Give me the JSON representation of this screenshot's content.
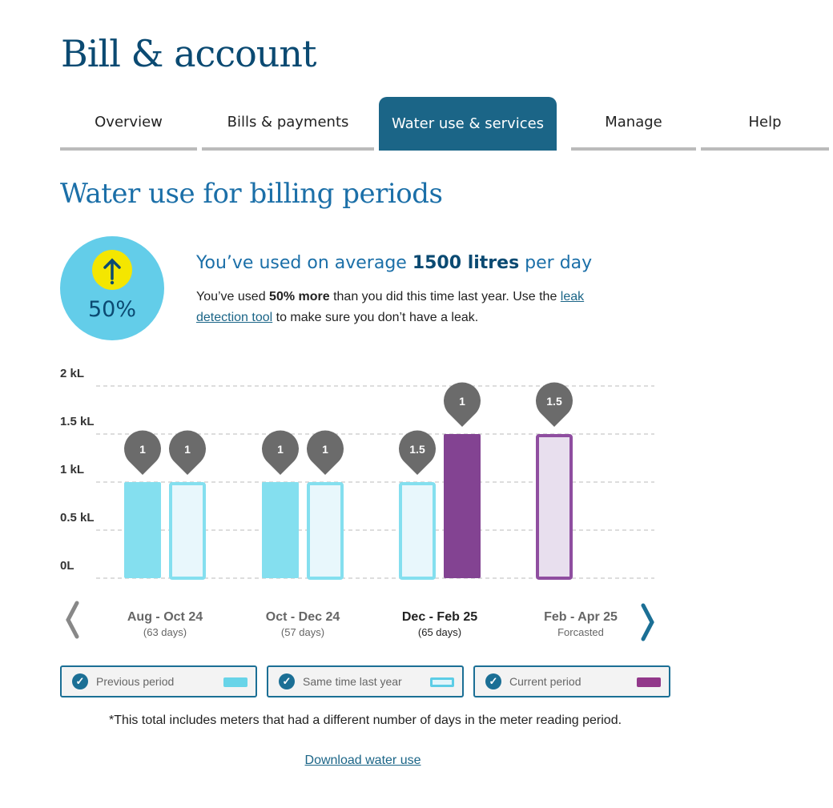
{
  "page_title": "Bill & account",
  "tabs": [
    {
      "label": "Overview",
      "active": false
    },
    {
      "label": "Bills & payments",
      "active": false
    },
    {
      "label": "Water use & services",
      "active": true
    },
    {
      "label": "Manage",
      "active": false
    },
    {
      "label": "Help",
      "active": false
    }
  ],
  "section_title": "Water use for billing periods",
  "summary": {
    "change_percent": "50%",
    "change_icon": "arrow-up-icon",
    "avg_prefix": "You’ve used on average ",
    "avg_value": "1500 litres",
    "avg_suffix": " per day",
    "desc_1": "You’ve used ",
    "desc_bold": "50% more",
    "desc_2": " than you did this time last year. Use the ",
    "link": "leak detection tool",
    "desc_3": " to make sure you don’t have a leak."
  },
  "colors": {
    "previous": "#84dfef",
    "same_time_last_year": "#e8f7fc",
    "same_time_last_year_border": "#84dfef",
    "current": "#834392",
    "forecast": "#e8dfee",
    "forecast_border": "#8f4ea0",
    "marker": "#6b6b6b",
    "accent": "#1b6587"
  },
  "chart_data": {
    "type": "bar",
    "ylim": [
      0,
      2
    ],
    "yunit": "kL",
    "yticks": [
      "0L",
      "0.5 kL",
      "1 kL",
      "1.5 kL",
      "2 kL"
    ],
    "grid": true,
    "categories": [
      {
        "label": "Aug - Oct 24",
        "sub": "(63 days)",
        "bold": false
      },
      {
        "label": "Oct - Dec 24",
        "sub": "(57 days)",
        "bold": false
      },
      {
        "label": "Dec - Feb 25",
        "sub": "(65 days)",
        "bold": true
      },
      {
        "label": "Feb - Apr 25",
        "sub": "Forcasted",
        "bold": false
      }
    ],
    "series": [
      {
        "name": "Previous period",
        "values": [
          1,
          1,
          null,
          null
        ]
      },
      {
        "name": "Same time last year",
        "values": [
          1,
          1,
          1,
          null
        ]
      },
      {
        "name": "Current period",
        "values": [
          null,
          null,
          1.5,
          1.5
        ],
        "forecast": [
          false,
          false,
          false,
          true
        ]
      }
    ],
    "data_labels": [
      [
        "1",
        "1"
      ],
      [
        "1",
        "1"
      ],
      [
        "1.5",
        "1"
      ],
      [
        "1.5"
      ]
    ]
  },
  "legend": [
    {
      "label": "Previous period",
      "checked": true
    },
    {
      "label": "Same time last year",
      "checked": true
    },
    {
      "label": "Current period",
      "checked": true
    }
  ],
  "footnote": "*This total includes meters that had a different number of days in the meter reading period.",
  "download_link": "Download water use"
}
